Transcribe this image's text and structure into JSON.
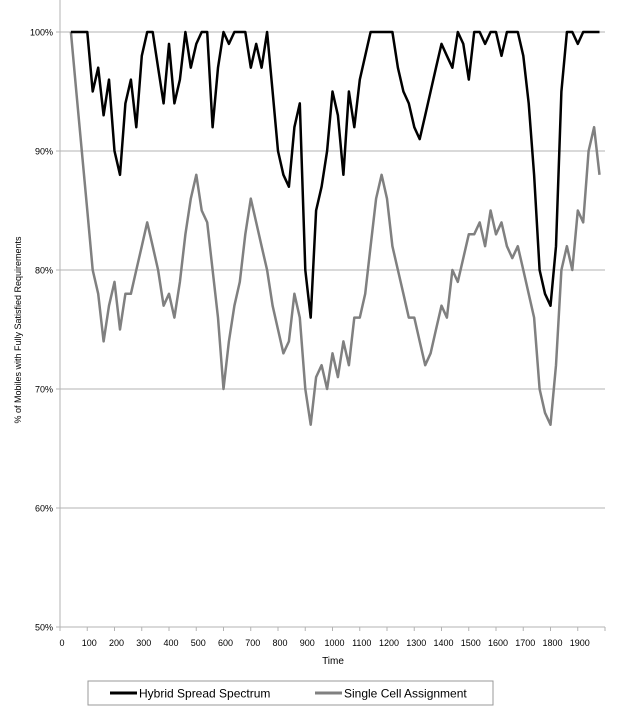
{
  "chart_data": {
    "type": "line",
    "title": "",
    "xlabel": "Time",
    "ylabel": "% of Mobiles with Fully Satisfied Requirements",
    "xlim": [
      0,
      2000
    ],
    "ylim": [
      50,
      100
    ],
    "x_ticks": [
      "0",
      "100",
      "200",
      "300",
      "400",
      "500",
      "600",
      "700",
      "800",
      "900",
      "1000",
      "1100",
      "1200",
      "1300",
      "1400",
      "1500",
      "1600",
      "1700",
      "1800",
      "1900"
    ],
    "y_ticks": [
      "50%",
      "60%",
      "70%",
      "80%",
      "90%",
      "100%"
    ],
    "grid": "horizontal",
    "legend_position": "bottom",
    "x": [
      40,
      60,
      80,
      100,
      120,
      140,
      160,
      180,
      200,
      220,
      240,
      260,
      280,
      300,
      320,
      340,
      360,
      380,
      400,
      420,
      440,
      460,
      480,
      500,
      520,
      540,
      560,
      580,
      600,
      620,
      640,
      660,
      680,
      700,
      720,
      740,
      760,
      780,
      800,
      820,
      840,
      860,
      880,
      900,
      920,
      940,
      960,
      980,
      1000,
      1020,
      1040,
      1060,
      1080,
      1100,
      1120,
      1140,
      1160,
      1180,
      1200,
      1220,
      1240,
      1260,
      1280,
      1300,
      1320,
      1340,
      1360,
      1380,
      1400,
      1420,
      1440,
      1460,
      1480,
      1500,
      1520,
      1540,
      1560,
      1580,
      1600,
      1620,
      1640,
      1660,
      1680,
      1700,
      1720,
      1740,
      1760,
      1780,
      1800,
      1820,
      1840,
      1860,
      1880,
      1900,
      1920,
      1940,
      1960,
      1980
    ],
    "series": [
      {
        "name": "Hybrid Spread Spectrum",
        "color": "#000000",
        "values": [
          100,
          100,
          100,
          100,
          95,
          97,
          93,
          96,
          90,
          88,
          94,
          96,
          92,
          98,
          100,
          100,
          97,
          94,
          99,
          94,
          96,
          100,
          97,
          99,
          100,
          100,
          92,
          97,
          100,
          99,
          100,
          100,
          100,
          97,
          99,
          97,
          100,
          95,
          90,
          88,
          87,
          92,
          94,
          80,
          76,
          85,
          87,
          90,
          95,
          93,
          88,
          95,
          92,
          96,
          98,
          100,
          100,
          100,
          100,
          100,
          97,
          95,
          94,
          92,
          91,
          93,
          95,
          97,
          99,
          98,
          97,
          100,
          99,
          96,
          100,
          100,
          99,
          100,
          100,
          98,
          100,
          100,
          100,
          98,
          94,
          88,
          80,
          78,
          77,
          82,
          95,
          100,
          100,
          99,
          100,
          100,
          100,
          100
        ]
      },
      {
        "name": "Single Cell Assignment",
        "color": "#808080",
        "values": [
          100,
          95,
          90,
          85,
          80,
          78,
          74,
          77,
          79,
          75,
          78,
          78,
          80,
          82,
          84,
          82,
          80,
          77,
          78,
          76,
          79,
          83,
          86,
          88,
          85,
          84,
          80,
          76,
          70,
          74,
          77,
          79,
          83,
          86,
          84,
          82,
          80,
          77,
          75,
          73,
          74,
          78,
          76,
          70,
          67,
          71,
          72,
          70,
          73,
          71,
          74,
          72,
          76,
          76,
          78,
          82,
          86,
          88,
          86,
          82,
          80,
          78,
          76,
          76,
          74,
          72,
          73,
          75,
          77,
          76,
          80,
          79,
          81,
          83,
          83,
          84,
          82,
          85,
          83,
          84,
          82,
          81,
          82,
          80,
          78,
          76,
          70,
          68,
          67,
          72,
          80,
          82,
          80,
          85,
          84,
          90,
          92,
          88
        ]
      }
    ]
  }
}
